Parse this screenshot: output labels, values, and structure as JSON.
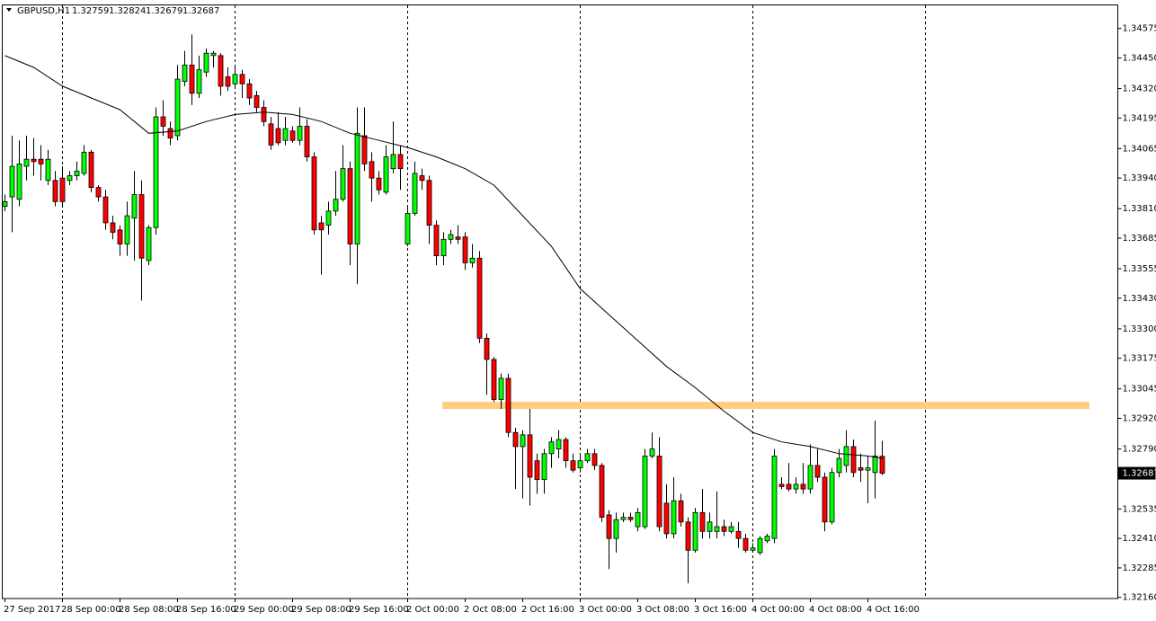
{
  "chart_data": {
    "type": "candlestick",
    "title": "GBPUSD,H1",
    "categories": [
      "27 Sep 2017",
      null,
      null,
      null,
      null,
      null,
      null,
      null,
      "28 Sep 00:00",
      null,
      null,
      null,
      null,
      null,
      null,
      null,
      "28 Sep 08:00",
      null,
      null,
      null,
      null,
      null,
      null,
      null,
      "28 Sep 16:00",
      null,
      null,
      null,
      null,
      null,
      null,
      null,
      "29 Sep 00:00",
      null,
      null,
      null,
      null,
      null,
      null,
      null,
      "29 Sep 08:00",
      null,
      null,
      null,
      null,
      null,
      null,
      null,
      "29 Sep 16:00",
      null,
      null,
      null,
      null,
      null,
      null,
      null,
      "2 Oct 00:00",
      null,
      null,
      null,
      null,
      null,
      null,
      null,
      "2 Oct 08:00",
      null,
      null,
      null,
      null,
      null,
      null,
      null,
      "2 Oct 16:00",
      null,
      null,
      null,
      null,
      null,
      null,
      null,
      "3 Oct 00:00",
      null,
      null,
      null,
      null,
      null,
      null,
      null,
      "3 Oct 08:00",
      null,
      null,
      null,
      null,
      null,
      null,
      null,
      "3 Oct 16:00",
      null,
      null,
      null,
      null,
      null,
      null,
      null,
      "4 Oct 00:00",
      null,
      null,
      null,
      null,
      null,
      null,
      null,
      "4 Oct 08:00",
      null,
      null,
      null,
      null,
      null,
      null,
      null,
      "4 Oct 16:00",
      null,
      null
    ],
    "open": [
      1.3382,
      1.3386,
      1.3385,
      1.3399,
      1.3402,
      1.3402,
      1.3393,
      1.3393,
      1.3394,
      1.3393,
      1.3395,
      1.3396,
      1.3405,
      1.339,
      1.3386,
      1.3375,
      1.3372,
      1.3366,
      1.3377,
      1.3387,
      1.3359,
      1.3373,
      1.342,
      1.3415,
      1.3412,
      1.3435,
      1.3442,
      1.343,
      1.3439,
      1.3446,
      1.3446,
      1.3437,
      1.3434,
      1.3438,
      1.3434,
      1.3429,
      1.3424,
      1.3417,
      1.3415,
      1.341,
      1.3414,
      1.341,
      1.3416,
      1.3403,
      1.3375,
      1.3374,
      1.338,
      1.3385,
      1.3398,
      1.3366,
      1.3412,
      1.3401,
      1.3394,
      1.3388,
      1.3398,
      1.3404,
      1.3366,
      1.3379,
      1.3395,
      1.3393,
      1.3374,
      1.3361,
      1.3368,
      1.3369,
      1.3369,
      1.3358,
      1.336,
      1.3326,
      1.3317,
      1.33,
      1.3309,
      1.3286,
      1.328,
      1.3285,
      1.3274,
      1.3266,
      1.3277,
      1.3279,
      1.3283,
      1.3274,
      1.3271,
      1.3274,
      1.3277,
      1.3272,
      1.3251,
      1.3241,
      1.3249,
      1.325,
      1.3246,
      1.3246,
      1.3276,
      1.3276,
      1.3256,
      1.3243,
      1.3257,
      1.3248,
      1.3236,
      1.3252,
      1.3244,
      1.3244,
      1.3246,
      1.3244,
      1.3244,
      1.3241,
      1.3236,
      1.3235,
      1.324,
      1.3241,
      1.3264,
      1.3264,
      1.3262,
      1.3264,
      1.3262,
      1.3272,
      1.3267,
      1.3248,
      1.3269,
      1.3272,
      1.328,
      1.3271,
      1.327,
      1.3269,
      1.32759
    ],
    "high": [
      1.3387,
      1.3412,
      1.341,
      1.3412,
      1.3411,
      1.3408,
      1.3406,
      1.3397,
      1.3399,
      1.3397,
      1.3401,
      1.3408,
      1.3406,
      1.3391,
      1.3389,
      1.3378,
      1.3374,
      1.3384,
      1.3397,
      1.3393,
      1.3374,
      1.3424,
      1.3427,
      1.3418,
      1.3442,
      1.3448,
      1.3455,
      1.3446,
      1.3449,
      1.3448,
      1.3447,
      1.3441,
      1.3441,
      1.344,
      1.3436,
      1.3431,
      1.3427,
      1.342,
      1.3422,
      1.342,
      1.3416,
      1.3424,
      1.3419,
      1.3405,
      1.3378,
      1.3384,
      1.3397,
      1.3408,
      1.3401,
      1.3424,
      1.3424,
      1.3405,
      1.3397,
      1.3408,
      1.3418,
      1.3408,
      1.3382,
      1.3401,
      1.3398,
      1.3395,
      1.3376,
      1.3371,
      1.3372,
      1.3374,
      1.3371,
      1.3366,
      1.3363,
      1.3328,
      1.3318,
      1.3311,
      1.3311,
      1.3288,
      1.3287,
      1.3296,
      1.3277,
      1.3279,
      1.3284,
      1.3287,
      1.3284,
      1.3277,
      1.3277,
      1.3279,
      1.3279,
      1.3273,
      1.3253,
      1.3252,
      1.3252,
      1.3252,
      1.3254,
      1.3279,
      1.3286,
      1.3284,
      1.3264,
      1.3267,
      1.326,
      1.325,
      1.3254,
      1.3262,
      1.3252,
      1.3261,
      1.3249,
      1.3248,
      1.3248,
      1.3243,
      1.3239,
      1.3242,
      1.3243,
      1.3279,
      1.3267,
      1.3273,
      1.3267,
      1.3273,
      1.3281,
      1.3279,
      1.3269,
      1.3271,
      1.3279,
      1.3287,
      1.3283,
      1.3277,
      1.3276,
      1.3291,
      1.32824
    ],
    "low": [
      1.338,
      1.3371,
      1.3382,
      1.3393,
      1.3395,
      1.3393,
      1.3391,
      1.3382,
      1.3382,
      1.3391,
      1.3393,
      1.3395,
      1.3388,
      1.3384,
      1.3372,
      1.3368,
      1.3361,
      1.3361,
      1.3359,
      1.3342,
      1.3357,
      1.337,
      1.3412,
      1.3408,
      1.341,
      1.3433,
      1.3425,
      1.3428,
      1.3437,
      1.3441,
      1.3429,
      1.3431,
      1.3432,
      1.3428,
      1.3425,
      1.3422,
      1.3416,
      1.3406,
      1.3408,
      1.3408,
      1.3409,
      1.3408,
      1.3401,
      1.337,
      1.3353,
      1.337,
      1.3378,
      1.3384,
      1.3357,
      1.3349,
      1.3397,
      1.3384,
      1.3387,
      1.3387,
      1.3396,
      1.3389,
      1.3365,
      1.3378,
      1.3389,
      1.3366,
      1.3357,
      1.3357,
      1.3366,
      1.3366,
      1.3355,
      1.3356,
      1.3324,
      1.3302,
      1.3299,
      1.3296,
      1.3284,
      1.3262,
      1.3258,
      1.3255,
      1.326,
      1.326,
      1.3271,
      1.3275,
      1.3271,
      1.3269,
      1.3269,
      1.3273,
      1.327,
      1.3248,
      1.3228,
      1.3235,
      1.3248,
      1.3248,
      1.3244,
      1.3245,
      1.3275,
      1.3244,
      1.3241,
      1.3241,
      1.3246,
      1.3222,
      1.3235,
      1.3241,
      1.3241,
      1.3241,
      1.3242,
      1.3243,
      1.3237,
      1.3235,
      1.3235,
      1.3234,
      1.3239,
      1.3239,
      1.3262,
      1.3261,
      1.326,
      1.326,
      1.326,
      1.3265,
      1.3244,
      1.3247,
      1.3267,
      1.3269,
      1.3267,
      1.3265,
      1.3256,
      1.3258,
      1.32679
    ],
    "close": [
      1.3384,
      1.3399,
      1.34,
      1.3402,
      1.3401,
      1.34,
      1.3402,
      1.3384,
      1.3384,
      1.3395,
      1.3397,
      1.3405,
      1.339,
      1.3386,
      1.3375,
      1.3371,
      1.3366,
      1.3378,
      1.3387,
      1.336,
      1.3373,
      1.342,
      1.3416,
      1.3411,
      1.3436,
      1.3442,
      1.343,
      1.344,
      1.3447,
      1.3447,
      1.3433,
      1.3433,
      1.3438,
      1.3434,
      1.3428,
      1.3424,
      1.3418,
      1.3408,
      1.3409,
      1.3415,
      1.341,
      1.3416,
      1.3403,
      1.3372,
      1.3372,
      1.338,
      1.3385,
      1.3398,
      1.3366,
      1.3413,
      1.34,
      1.3394,
      1.3389,
      1.3403,
      1.3404,
      1.3398,
      1.3379,
      1.3396,
      1.3393,
      1.3374,
      1.3361,
      1.3368,
      1.337,
      1.3368,
      1.3358,
      1.336,
      1.3326,
      1.3317,
      1.33,
      1.3309,
      1.3286,
      1.328,
      1.3285,
      1.3267,
      1.3266,
      1.3277,
      1.3282,
      1.3283,
      1.3274,
      1.327,
      1.3274,
      1.3277,
      1.3272,
      1.325,
      1.3241,
      1.3249,
      1.325,
      1.3249,
      1.3252,
      1.3276,
      1.3279,
      1.3246,
      1.3243,
      1.3257,
      1.3248,
      1.3236,
      1.3252,
      1.3244,
      1.3248,
      1.3246,
      1.3244,
      1.3246,
      1.3241,
      1.3236,
      1.3237,
      1.3241,
      1.3242,
      1.3276,
      1.3263,
      1.3262,
      1.3264,
      1.3262,
      1.3272,
      1.3267,
      1.3248,
      1.3269,
      1.3275,
      1.328,
      1.3269,
      1.327,
      1.3271,
      1.3276,
      1.32687
    ],
    "up_color": "#00ff00",
    "down_color": "#ff0000",
    "wick_color": "#000000",
    "moving_average": {
      "x": [
        0,
        4,
        8,
        12,
        16,
        20,
        24,
        28,
        32,
        36,
        40,
        44,
        48,
        52,
        56,
        60,
        64,
        68,
        72,
        76,
        80,
        84,
        88,
        92,
        96,
        100,
        104,
        108,
        112,
        116,
        120,
        122
      ],
      "values": [
        1.3446,
        1.3441,
        1.3433,
        1.3428,
        1.3423,
        1.3413,
        1.3414,
        1.3418,
        1.3421,
        1.3422,
        1.3421,
        1.3418,
        1.3413,
        1.341,
        1.3407,
        1.3403,
        1.3398,
        1.3391,
        1.3378,
        1.3365,
        1.3347,
        1.3336,
        1.3325,
        1.3314,
        1.3305,
        1.3295,
        1.3286,
        1.3282,
        1.328,
        1.3277,
        1.3276,
        1.3275
      ],
      "color": "#000000"
    },
    "resistance_zone": [
      1.3296,
      1.3299
    ],
    "zone_color": "#ffcc80",
    "ylim": [
      1.32155,
      1.34675
    ],
    "yticks": [
      1.34575,
      {
        "value": 1.3445,
        "label": "1.34450"
      },
      {
        "value": 1.3432,
        "label": "1.34320"
      },
      1.34195,
      1.34065,
      {
        "value": 1.3394,
        "label": "1.33940"
      },
      {
        "value": 1.3381,
        "label": "1.33810"
      },
      1.33685,
      1.33555,
      {
        "value": 1.3343,
        "label": "1.33430"
      },
      {
        "value": 1.333,
        "label": "1.33300"
      },
      1.33175,
      1.33045,
      {
        "value": 1.3292,
        "label": "1.32920"
      },
      {
        "value": 1.3279,
        "label": "1.32790"
      },
      1.32535,
      {
        "value": 1.3241,
        "label": "1.32410"
      },
      1.32285,
      {
        "value": 1.3216,
        "label": "1.32160"
      }
    ],
    "grid": false
  }
}
